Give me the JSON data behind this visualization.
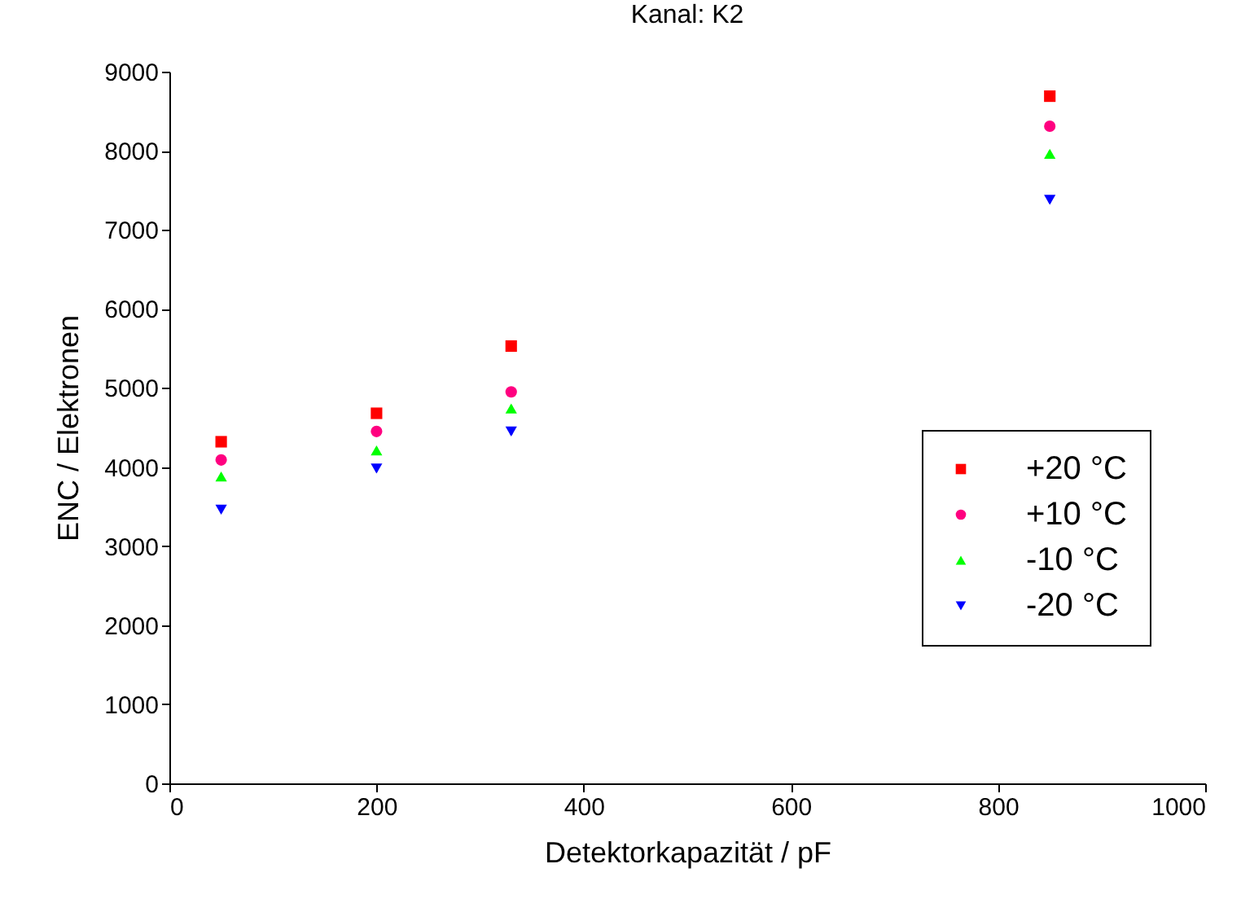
{
  "chart_data": {
    "type": "scatter",
    "title": "Kanal: K2",
    "xlabel": "Detektorkapazität / pF",
    "ylabel": "ENC / Elektronen",
    "x": [
      50,
      200,
      330,
      850
    ],
    "series": [
      {
        "name": "+20 °C",
        "color": "#ff0000",
        "marker": "square",
        "values": [
          4320,
          4680,
          5530,
          8690
        ],
        "errors": [
          40,
          40,
          40,
          40
        ]
      },
      {
        "name": "+10 °C",
        "color": "#ff0080",
        "marker": "circle",
        "values": [
          4090,
          4450,
          4950,
          8310
        ],
        "errors": [
          40,
          40,
          40,
          40
        ]
      },
      {
        "name": "-10 °C",
        "color": "#00ff00",
        "marker": "triangle",
        "values": [
          3880,
          4210,
          4740,
          7960
        ],
        "errors": [
          40,
          40,
          40,
          40
        ]
      },
      {
        "name": "-20 °C",
        "color": "#0000ff",
        "marker": "triangle-down",
        "values": [
          3460,
          3980,
          4450,
          7380
        ],
        "errors": [
          40,
          40,
          40,
          40
        ]
      }
    ],
    "xlim": [
      0,
      1000
    ],
    "xticks": [
      0,
      200,
      400,
      600,
      800,
      1000
    ],
    "ylim": [
      0,
      9000
    ],
    "yticks": [
      0,
      1000,
      2000,
      3000,
      4000,
      5000,
      6000,
      7000,
      8000,
      9000
    ],
    "legend": "right"
  }
}
